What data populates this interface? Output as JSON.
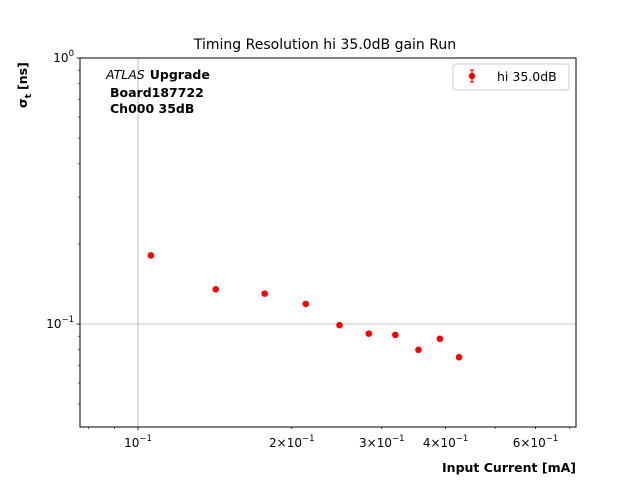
{
  "chart_data": {
    "type": "scatter",
    "title": "Timing Resolution hi 35.0dB gain Run",
    "xlabel": "Input Current [mA]",
    "ylabel_main": "σ",
    "ylabel_sub": "t",
    "ylabel_unit": "[ns]",
    "x_scale": "log",
    "y_scale": "log",
    "xlim": [
      0.077,
      0.72
    ],
    "ylim": [
      0.041,
      1.0
    ],
    "grid": true,
    "x_ticks": [
      {
        "value": 0.1,
        "base": "10",
        "exp": "−1",
        "coef": ""
      },
      {
        "value": 0.2,
        "base": "10",
        "exp": "−1",
        "coef": "2×"
      },
      {
        "value": 0.3,
        "base": "10",
        "exp": "−1",
        "coef": "3×"
      },
      {
        "value": 0.4,
        "base": "10",
        "exp": "−1",
        "coef": "4×"
      },
      {
        "value": 0.6,
        "base": "10",
        "exp": "−1",
        "coef": "6×"
      }
    ],
    "y_ticks": [
      {
        "value": 0.1,
        "base": "10",
        "exp": "−1"
      },
      {
        "value": 1.0,
        "base": "10",
        "exp": "0"
      }
    ],
    "annotation": {
      "italic": "ATLAS",
      "bold": "Upgrade",
      "line2": "Board187722",
      "line3": "Ch000 35dB"
    },
    "legend_position": "top-right",
    "series": [
      {
        "name": "hi 35.0dB",
        "color": "#ff0000",
        "x": [
          0.106,
          0.142,
          0.177,
          0.213,
          0.248,
          0.283,
          0.319,
          0.354,
          0.39,
          0.425
        ],
        "y": [
          0.181,
          0.135,
          0.13,
          0.119,
          0.099,
          0.092,
          0.091,
          0.08,
          0.088,
          0.075
        ]
      }
    ]
  }
}
